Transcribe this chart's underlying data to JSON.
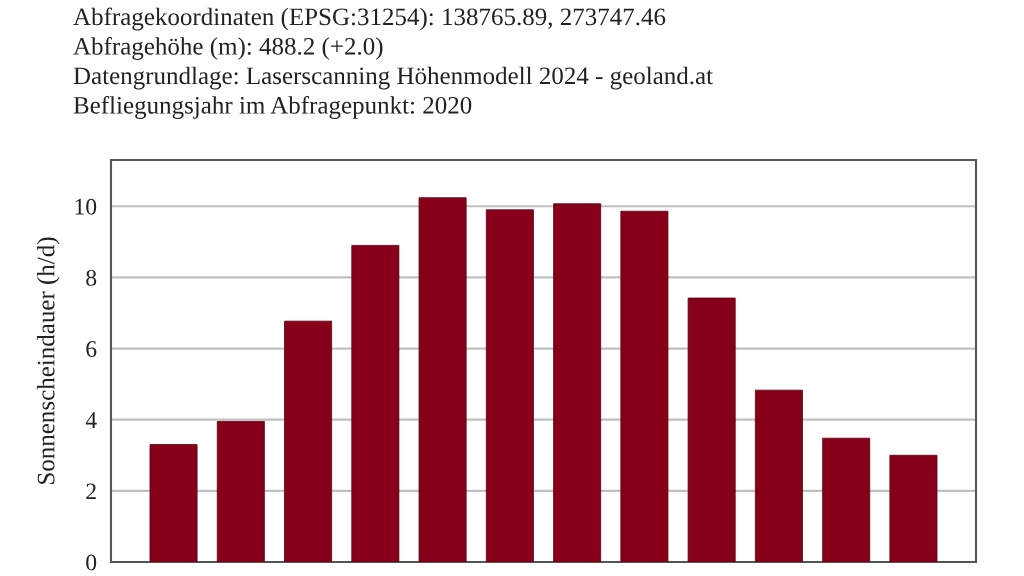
{
  "chart_data": {
    "type": "bar",
    "annotations": [
      "Abfragekoordinaten (EPSG:31254): 138765.89, 273747.46",
      "Abfragehöhe (m): 488.2 (+2.0)",
      "Datengrundlage: Laserscanning Höhenmodell 2024 - geoland.at",
      "Befliegungsjahr im Abfragepunkt: 2020"
    ],
    "ylabel": "Sonnenscheindauer (h/d)",
    "categories": [
      null,
      null,
      null,
      null,
      null,
      null,
      null,
      null,
      null,
      null,
      null,
      null
    ],
    "values": [
      3.3,
      3.95,
      6.77,
      8.9,
      10.24,
      9.9,
      10.07,
      9.86,
      7.42,
      4.83,
      3.48,
      3.0
    ],
    "color": "#87001a",
    "ylim": [
      0,
      11.3
    ],
    "yticks": [
      0,
      2,
      4,
      6,
      8,
      10
    ],
    "grid": "y",
    "tick_labels": "y"
  }
}
